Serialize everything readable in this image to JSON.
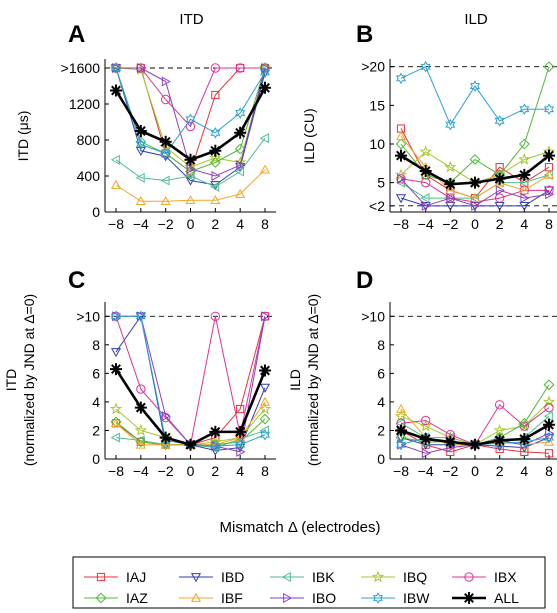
{
  "colors": {
    "IAJ": "#e8323c",
    "IBD": "#2e3fb0",
    "IBK": "#4dbf8f",
    "IBQ": "#a6c62c",
    "IBX": "#e0329a",
    "IAZ": "#4cb83a",
    "IBF": "#f5a623",
    "IBO": "#8a3fc2",
    "IBW": "#2ca0d8",
    "ALL": "#000000"
  },
  "markers": {
    "IAJ": "square",
    "IBD": "triangle-down",
    "IBK": "triangle-left",
    "IBQ": "star",
    "IBX": "circle",
    "IAZ": "diamond",
    "IBF": "triangle-up",
    "IBO": "triangle-right",
    "IBW": "hexagram",
    "ALL": "asterisk"
  },
  "shared_xlabel": "Mismatch Δ (electrodes)",
  "legend_entries": [
    "IAJ",
    "IBD",
    "IBK",
    "IBQ",
    "IBX",
    "IAZ",
    "IBF",
    "IBO",
    "IBW",
    "ALL"
  ],
  "chart_data": [
    {
      "panel_letter": "A",
      "title": "ITD",
      "type": "line",
      "ylabel": "ITD (μs)",
      "xlabel": "",
      "x": [
        -8,
        -4,
        -2,
        0,
        2,
        4,
        8
      ],
      "x_tick_labels": [
        "−8",
        "−4",
        "−2",
        "0",
        "2",
        "4",
        "8"
      ],
      "ylim": [
        0,
        1700
      ],
      "y_ticks": [
        0,
        400,
        800,
        1200
      ],
      "y_tick_labels": [
        "0",
        "400",
        "800",
        "1200"
      ],
      "ceiling": {
        "value": 1600,
        "label": ">1600"
      },
      "series": [
        {
          "name": "IAJ",
          "values": [
            1600,
            1600,
            650,
            450,
            1300,
            1600,
            1600
          ]
        },
        {
          "name": "IBD",
          "values": [
            1600,
            680,
            620,
            350,
            300,
            500,
            1550
          ]
        },
        {
          "name": "IBK",
          "values": [
            580,
            380,
            350,
            400,
            280,
            450,
            820
          ]
        },
        {
          "name": "IBQ",
          "values": [
            1600,
            1580,
            720,
            500,
            600,
            550,
            1600
          ]
        },
        {
          "name": "IBX",
          "values": [
            1600,
            1600,
            1250,
            950,
            1600,
            1600,
            1600
          ]
        },
        {
          "name": "IAZ",
          "values": [
            1600,
            780,
            650,
            450,
            550,
            700,
            1600
          ]
        },
        {
          "name": "IBF",
          "values": [
            300,
            120,
            120,
            130,
            130,
            200,
            470
          ]
        },
        {
          "name": "IBO",
          "values": [
            1600,
            1600,
            1450,
            480,
            400,
            520,
            1600
          ]
        },
        {
          "name": "IBW",
          "values": [
            1600,
            750,
            650,
            1030,
            880,
            1100,
            1550
          ]
        },
        {
          "name": "ALL",
          "values": [
            1350,
            900,
            780,
            580,
            680,
            880,
            1380
          ]
        }
      ]
    },
    {
      "panel_letter": "B",
      "title": "ILD",
      "type": "line",
      "ylabel": "ILD (CU)",
      "xlabel": "",
      "x": [
        -8,
        -4,
        -2,
        0,
        2,
        4,
        8
      ],
      "x_tick_labels": [
        "−8",
        "−4",
        "−2",
        "0",
        "2",
        "4",
        "8"
      ],
      "ylim": [
        1.2,
        21
      ],
      "y_ticks": [
        5,
        10,
        15
      ],
      "y_tick_labels": [
        "5",
        "10",
        "15"
      ],
      "ceiling": {
        "value": 20,
        "label": ">20"
      },
      "floor": {
        "value": 2,
        "label": "<2"
      },
      "series": [
        {
          "name": "IAJ",
          "values": [
            12,
            6,
            4,
            3,
            7,
            5,
            7
          ]
        },
        {
          "name": "IBD",
          "values": [
            3,
            2,
            2,
            2,
            2,
            2,
            4
          ]
        },
        {
          "name": "IBK",
          "values": [
            5,
            3,
            3,
            3,
            5,
            5,
            6
          ]
        },
        {
          "name": "IBQ",
          "values": [
            6,
            9,
            7,
            5,
            6,
            8,
            9
          ]
        },
        {
          "name": "IBX",
          "values": [
            5.5,
            5,
            3,
            2.5,
            3,
            4,
            4
          ]
        },
        {
          "name": "IAZ",
          "values": [
            10,
            6,
            5,
            8,
            6,
            10,
            20
          ]
        },
        {
          "name": "IBF",
          "values": [
            11,
            7,
            4,
            3,
            5,
            4,
            6
          ]
        },
        {
          "name": "IBO",
          "values": [
            5.5,
            2,
            3,
            2,
            4,
            3,
            3.5
          ]
        },
        {
          "name": "IBW",
          "values": [
            18.5,
            20,
            12.5,
            17.5,
            13,
            14.5,
            14.5
          ]
        },
        {
          "name": "ALL",
          "values": [
            8.5,
            6.5,
            4.8,
            5,
            5.5,
            6,
            8.5
          ]
        }
      ]
    },
    {
      "panel_letter": "C",
      "title": "",
      "type": "line",
      "ylabel": "ITD",
      "ylabel_line2": "(normalized by JND at  Δ=0)",
      "xlabel": "",
      "x": [
        -8,
        -4,
        -2,
        0,
        2,
        4,
        8
      ],
      "x_tick_labels": [
        "−8",
        "−4",
        "−2",
        "0",
        "2",
        "4",
        "8"
      ],
      "ylim": [
        0,
        11
      ],
      "y_ticks": [
        0,
        2,
        4,
        6,
        8
      ],
      "y_tick_labels": [
        "0",
        "2",
        "4",
        "6",
        "8"
      ],
      "ceiling": {
        "value": 10,
        "label": ">10"
      },
      "series": [
        {
          "name": "IAJ",
          "values": [
            2.5,
            1.2,
            1.0,
            1.0,
            1.5,
            3.5,
            10
          ]
        },
        {
          "name": "IBD",
          "values": [
            7.5,
            10,
            1.0,
            1.0,
            0.6,
            0.8,
            5.0
          ]
        },
        {
          "name": "IBK",
          "values": [
            1.5,
            1.3,
            1.0,
            1.0,
            0.8,
            1.4,
            2.0
          ]
        },
        {
          "name": "IBQ",
          "values": [
            3.5,
            2.0,
            1.5,
            1.0,
            1.2,
            1.5,
            3.5
          ]
        },
        {
          "name": "IBX",
          "values": [
            10,
            4.9,
            2.9,
            1.0,
            10,
            1.7,
            10
          ]
        },
        {
          "name": "IAZ",
          "values": [
            2.6,
            1.2,
            1.0,
            1.0,
            1.0,
            1.2,
            2.8
          ]
        },
        {
          "name": "IBF",
          "values": [
            2.5,
            1.0,
            1.0,
            1.0,
            1.0,
            1.5,
            4.0
          ]
        },
        {
          "name": "IBO",
          "values": [
            10,
            10,
            3.0,
            1.0,
            0.9,
            0.5,
            10
          ]
        },
        {
          "name": "IBW",
          "values": [
            10,
            10,
            1.3,
            1.0,
            0.9,
            1.0,
            1.7
          ]
        },
        {
          "name": "ALL",
          "values": [
            6.3,
            3.6,
            1.5,
            1.0,
            1.9,
            1.9,
            6.2
          ]
        }
      ]
    },
    {
      "panel_letter": "D",
      "title": "",
      "type": "line",
      "ylabel": "ILD",
      "ylabel_line2": "(normalized by JND at  Δ=0)",
      "xlabel": "",
      "x": [
        -8,
        -4,
        -2,
        0,
        2,
        4,
        8
      ],
      "x_tick_labels": [
        "−8",
        "−4",
        "−2",
        "0",
        "2",
        "4",
        "8"
      ],
      "ylim": [
        0,
        11
      ],
      "y_ticks": [
        0,
        2,
        4,
        6,
        8
      ],
      "y_tick_labels": [
        "0",
        "2",
        "4",
        "6",
        "8"
      ],
      "ceiling": {
        "value": 10,
        "label": ">10"
      },
      "series": [
        {
          "name": "IAJ",
          "values": [
            2.0,
            1.0,
            0.5,
            1.0,
            0.7,
            0.5,
            0.4
          ]
        },
        {
          "name": "IBD",
          "values": [
            1.5,
            1.0,
            1.0,
            1.0,
            0.9,
            0.8,
            1.5
          ]
        },
        {
          "name": "IBK",
          "values": [
            2.5,
            1.5,
            1.5,
            1.0,
            1.2,
            1.5,
            3.0
          ]
        },
        {
          "name": "IBQ",
          "values": [
            3.0,
            2.3,
            1.5,
            1.0,
            2.0,
            2.3,
            4.0
          ]
        },
        {
          "name": "IBX",
          "values": [
            2.5,
            2.7,
            1.7,
            1.0,
            3.8,
            2.3,
            3.6
          ]
        },
        {
          "name": "IAZ",
          "values": [
            1.5,
            1.2,
            1.2,
            1.0,
            1.5,
            2.5,
            5.2
          ]
        },
        {
          "name": "IBF",
          "values": [
            3.5,
            1.5,
            1.0,
            1.0,
            1.2,
            1.0,
            1.2
          ]
        },
        {
          "name": "IBO",
          "values": [
            1.0,
            0.4,
            0.8,
            1.0,
            1.3,
            1.0,
            1.8
          ]
        },
        {
          "name": "IBW",
          "values": [
            1.0,
            1.5,
            1.2,
            1.0,
            1.1,
            1.2,
            1.5
          ]
        },
        {
          "name": "ALL",
          "values": [
            2.0,
            1.4,
            1.2,
            1.0,
            1.3,
            1.4,
            2.4
          ]
        }
      ]
    }
  ]
}
